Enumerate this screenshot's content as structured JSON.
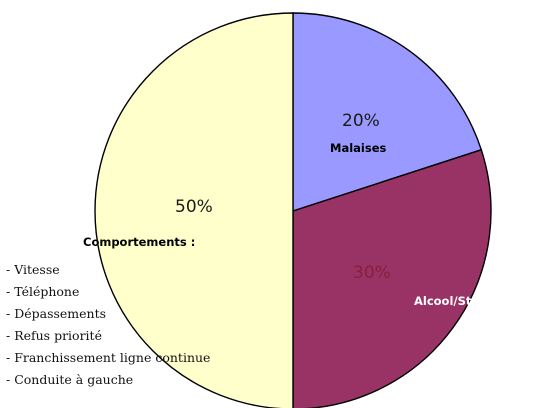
{
  "chart_data": {
    "type": "pie",
    "title": "",
    "slices": [
      {
        "label": "Malaises",
        "value": 20,
        "value_label": "20%",
        "color": "#9999ff"
      },
      {
        "label": "Alcool/Stupéfiants",
        "value": 30,
        "value_label": "30%",
        "color": "#993366"
      },
      {
        "label": "Comportements :",
        "value": 50,
        "value_label": "50%",
        "color": "#ffffcc",
        "details": [
          "- Vitesse",
          "- Téléphone",
          "- Dépassements",
          "- Refus priorité",
          "- Franchissement ligne continue",
          "- Conduite à gauche"
        ]
      }
    ],
    "legend": "none"
  }
}
